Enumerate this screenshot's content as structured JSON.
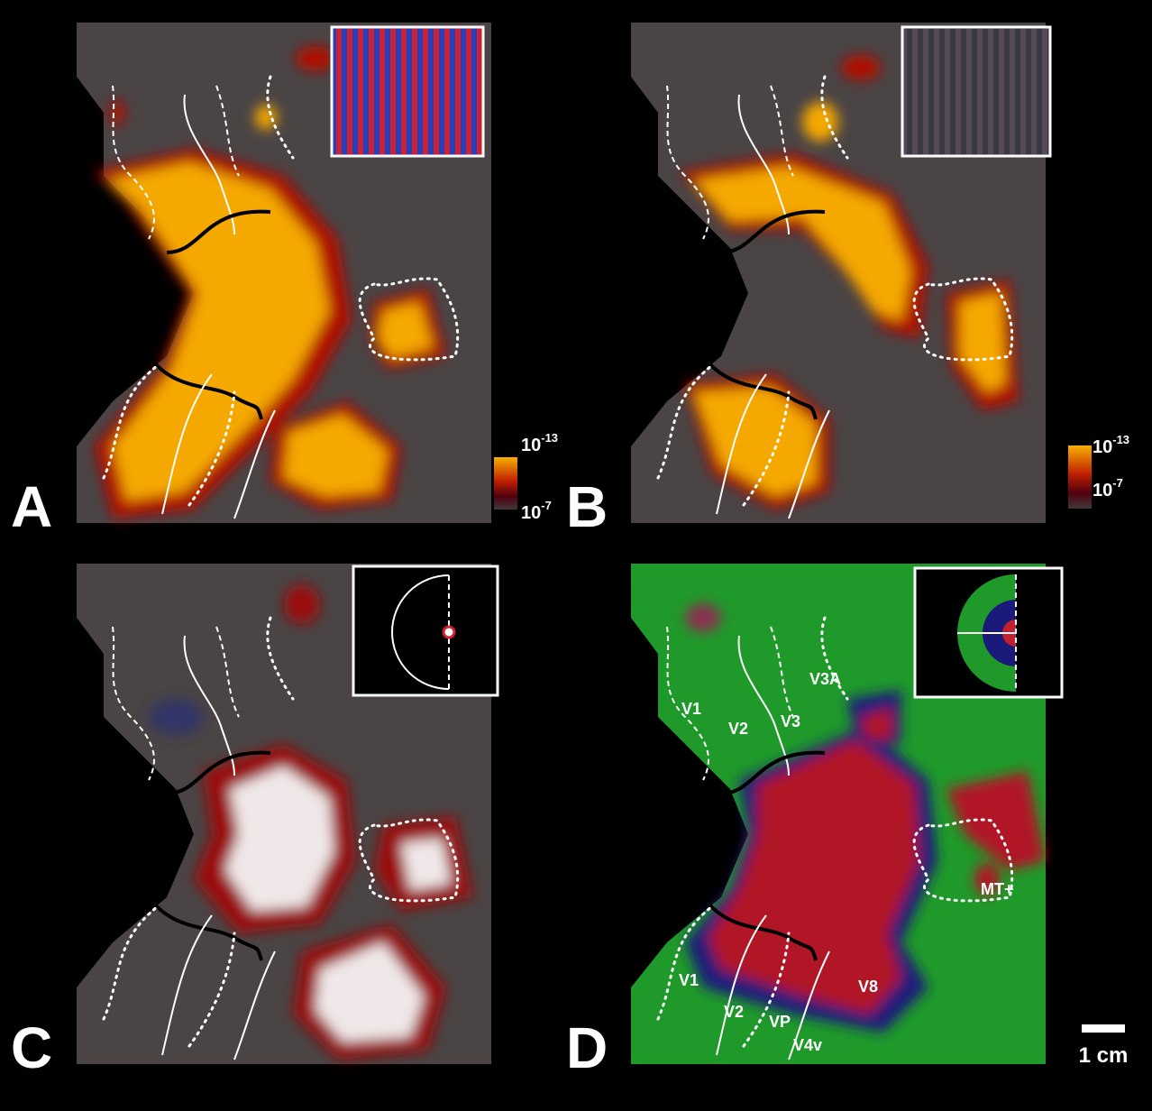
{
  "panels": [
    {
      "label": "A",
      "colorbar": {
        "top": {
          "base": "10",
          "exponent": "-13"
        },
        "bottom": {
          "base": "10",
          "exponent": "-7"
        }
      }
    },
    {
      "label": "B",
      "colorbar": {
        "top": {
          "base": "10",
          "exponent": "-13"
        },
        "bottom": {
          "base": "10",
          "exponent": "-7"
        }
      }
    },
    {
      "label": "C"
    },
    {
      "label": "D",
      "area_labels": [
        "V1",
        "V2",
        "V3",
        "V3A",
        "V1",
        "V2",
        "VP",
        "V4v",
        "V8",
        "MT+"
      ]
    }
  ],
  "scale_bar": "1 cm"
}
